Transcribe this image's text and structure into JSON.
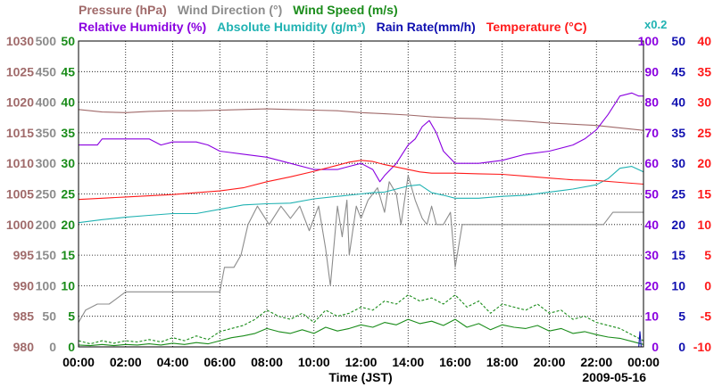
{
  "chart_data": {
    "type": "line",
    "title_lines": [
      [
        {
          "text": "Pressure (hPa)",
          "color": "#a06a6a"
        },
        {
          "text": "Wind Direction (°)",
          "color": "#8c8c8c"
        },
        {
          "text": "Wind Speed (m/s)",
          "color": "#1a8c1a"
        }
      ],
      [
        {
          "text": "Relative Humidity (%)",
          "color": "#8a00e0"
        },
        {
          "text": "Absolute Humidity (g/m³)",
          "color": "#20b2b2"
        },
        {
          "text": "Rain Rate(mm/h)",
          "color": "#1010b0"
        },
        {
          "text": "Temperature (°C)",
          "color": "#ff1a1a"
        }
      ]
    ],
    "corner_label": "x0.2",
    "xlabel": "Time (JST)",
    "date_label": "2009-05-16",
    "x_ticks": [
      "00:00",
      "02:00",
      "04:00",
      "06:00",
      "08:00",
      "10:00",
      "12:00",
      "14:00",
      "16:00",
      "18:00",
      "20:00",
      "22:00",
      "00:00"
    ],
    "xlim": [
      0,
      24
    ],
    "grid": true,
    "axes": [
      {
        "side": "left",
        "color": "#a06a6a",
        "labels": [
          "1030",
          "1025",
          "1020",
          "1015",
          "1010",
          "1005",
          "1000",
          "995",
          "990",
          "985",
          "980"
        ]
      },
      {
        "side": "left",
        "color": "#8c8c8c",
        "labels": [
          "500",
          "450",
          "400",
          "350",
          "300",
          "250",
          "200",
          "150",
          "100",
          "50",
          "0"
        ]
      },
      {
        "side": "left",
        "color": "#1a8c1a",
        "labels": [
          "50",
          "45",
          "40",
          "35",
          "30",
          "25",
          "20",
          "15",
          "10",
          "5",
          "0"
        ]
      },
      {
        "side": "right",
        "color": "#8a00e0",
        "labels": [
          "100",
          "90",
          "80",
          "70",
          "60",
          "50",
          "40",
          "30",
          "20",
          "10",
          "0"
        ]
      },
      {
        "side": "right",
        "color": "#1010b0",
        "labels": [
          "50",
          "45",
          "40",
          "35",
          "30",
          "25",
          "20",
          "15",
          "10",
          "5",
          "0"
        ]
      },
      {
        "side": "right",
        "color": "#ff1a1a",
        "labels": [
          "40",
          "35",
          "30",
          "25",
          "20",
          "15",
          "10",
          "5",
          "0",
          "-5",
          "-10"
        ]
      }
    ],
    "series": [
      {
        "name": "Pressure (hPa)",
        "color": "#a06a6a",
        "ylim": [
          980,
          1030
        ],
        "x": [
          0,
          1,
          2,
          3,
          4,
          5,
          6,
          7,
          8,
          9,
          10,
          11,
          12,
          13,
          14,
          15,
          16,
          17,
          18,
          19,
          20,
          21,
          22,
          23,
          24
        ],
        "y": [
          1018.8,
          1018.4,
          1018.3,
          1018.5,
          1018.6,
          1018.6,
          1018.7,
          1018.8,
          1018.9,
          1018.8,
          1018.7,
          1018.6,
          1018.3,
          1018.1,
          1017.9,
          1017.6,
          1017.4,
          1017.3,
          1017.1,
          1016.9,
          1016.6,
          1016.4,
          1016.2,
          1015.8,
          1015.4
        ]
      },
      {
        "name": "Wind Direction (°)",
        "color": "#8c8c8c",
        "ylim": [
          0,
          500
        ],
        "x": [
          0,
          0.3,
          0.8,
          1.3,
          2,
          3,
          4,
          5,
          5.3,
          6,
          6.2,
          6.6,
          6.9,
          7.2,
          7.6,
          8.1,
          8.6,
          9,
          9.4,
          9.8,
          10.2,
          10.5,
          10.7,
          11,
          11.2,
          11.4,
          11.5,
          11.8,
          12,
          12.3,
          12.7,
          13,
          13.2,
          13.5,
          13.7,
          14,
          14.3,
          14.6,
          14.8,
          15,
          15.2,
          15.5,
          15.8,
          16,
          16.3,
          16.6,
          17,
          17.5,
          18,
          18.5,
          19,
          19.5,
          20,
          20.5,
          21,
          21.5,
          22,
          22.3,
          22.7,
          23,
          23.5,
          24
        ],
        "y": [
          40,
          60,
          70,
          70,
          90,
          90,
          90,
          90,
          90,
          90,
          130,
          130,
          150,
          200,
          230,
          200,
          230,
          210,
          230,
          190,
          230,
          160,
          100,
          230,
          180,
          240,
          150,
          230,
          210,
          240,
          260,
          220,
          270,
          250,
          200,
          280,
          240,
          210,
          200,
          230,
          200,
          200,
          220,
          130,
          200,
          200,
          200,
          200,
          200,
          200,
          200,
          200,
          200,
          200,
          200,
          200,
          200,
          200,
          220,
          220,
          220,
          220
        ]
      },
      {
        "name": "Wind Speed (m/s) max",
        "color": "#1a8c1a",
        "dashed": true,
        "ylim": [
          0,
          50
        ],
        "x": [
          0,
          0.5,
          1,
          1.5,
          2,
          2.5,
          3,
          3.5,
          4,
          4.5,
          5,
          5.5,
          6,
          6.5,
          7,
          7.5,
          8,
          8.5,
          9,
          9.5,
          10,
          10.5,
          11,
          11.5,
          12,
          12.5,
          13,
          13.5,
          14,
          14.5,
          15,
          15.5,
          16,
          16.5,
          17,
          17.5,
          18,
          18.5,
          19,
          19.5,
          20,
          20.5,
          21,
          21.5,
          22,
          22.5,
          23,
          23.5,
          24
        ],
        "y": [
          1,
          0.5,
          1,
          0.6,
          1,
          0.8,
          1.2,
          0.8,
          1.5,
          1,
          1.8,
          1.2,
          2.5,
          3,
          3.5,
          4.5,
          6,
          5,
          4.5,
          5.5,
          4,
          6,
          5,
          5.5,
          6.5,
          6,
          7.5,
          7,
          8.5,
          7.5,
          8,
          7,
          8.5,
          6.5,
          7.5,
          5.5,
          7,
          6.5,
          6,
          7,
          5.5,
          6,
          4.5,
          5,
          4,
          3.5,
          3,
          2,
          1
        ]
      },
      {
        "name": "Wind Speed (m/s)",
        "color": "#1a8c1a",
        "ylim": [
          0,
          50
        ],
        "x": [
          0,
          0.5,
          1,
          1.5,
          2,
          2.5,
          3,
          3.5,
          4,
          4.5,
          5,
          5.5,
          6,
          6.5,
          7,
          7.5,
          8,
          8.5,
          9,
          9.5,
          10,
          10.5,
          11,
          11.5,
          12,
          12.5,
          13,
          13.5,
          14,
          14.5,
          15,
          15.5,
          16,
          16.5,
          17,
          17.5,
          18,
          18.5,
          19,
          19.5,
          20,
          20.5,
          21,
          21.5,
          22,
          22.5,
          23,
          23.5,
          24
        ],
        "y": [
          0.3,
          0.2,
          0.4,
          0.2,
          0.4,
          0.3,
          0.5,
          0.3,
          0.6,
          0.4,
          0.7,
          0.5,
          1,
          1.5,
          1.8,
          2.2,
          3,
          2.5,
          2.2,
          2.8,
          2.2,
          3.2,
          2.6,
          3,
          3.6,
          3.2,
          4,
          3.6,
          4.5,
          3.8,
          4.2,
          3.5,
          4.5,
          3.2,
          3.8,
          2.8,
          3.6,
          3.2,
          3,
          3.5,
          2.6,
          3,
          2.2,
          2.5,
          2,
          1.6,
          1.4,
          0.9,
          0.4
        ]
      },
      {
        "name": "Relative Humidity (%)",
        "color": "#8a00e0",
        "ylim": [
          0,
          100
        ],
        "x": [
          0,
          0.8,
          1,
          2,
          3,
          3.5,
          4,
          5,
          5.5,
          6,
          7,
          8,
          9,
          10,
          11,
          11.5,
          12,
          12.5,
          12.8,
          13,
          13.5,
          14,
          14.3,
          14.6,
          14.9,
          15.2,
          15.5,
          16,
          17,
          18,
          19,
          20,
          21,
          21.5,
          22,
          22.5,
          23,
          23.5,
          23.8,
          24
        ],
        "y": [
          66,
          66,
          68,
          68,
          68,
          66,
          67,
          67,
          66,
          64,
          63,
          62,
          60,
          58,
          58,
          59,
          60,
          58,
          54,
          56,
          60,
          66,
          68,
          72,
          74,
          70,
          64,
          60,
          60,
          61,
          63,
          64,
          66,
          68,
          71,
          76,
          82,
          83,
          82,
          82
        ]
      },
      {
        "name": "Absolute Humidity (g/m³)",
        "color": "#20b2b2",
        "ylim": [
          0,
          50
        ],
        "x": [
          0,
          1,
          2,
          3,
          4,
          5,
          6,
          7,
          8,
          9,
          10,
          11,
          12,
          12.5,
          13,
          13.5,
          14,
          14.5,
          15,
          15.5,
          16,
          17,
          18,
          19,
          20,
          21,
          22,
          22.5,
          23,
          23.5,
          24
        ],
        "y": [
          20.3,
          20.8,
          21.2,
          21.5,
          21.8,
          21.8,
          22.5,
          23.2,
          23.4,
          23.5,
          24.2,
          24.6,
          25.0,
          25.2,
          25.3,
          25.8,
          26.3,
          26.5,
          25.2,
          24.8,
          24.3,
          24.3,
          24.6,
          24.8,
          25.3,
          25.8,
          26.5,
          27.5,
          29.2,
          29.5,
          28.6
        ]
      },
      {
        "name": "Temperature (°C)",
        "color": "#ff1a1a",
        "ylim": [
          -10,
          40
        ],
        "x": [
          0,
          1,
          2,
          3,
          4,
          5,
          6,
          7,
          8,
          9,
          10,
          11,
          11.5,
          12,
          12.5,
          13,
          13.5,
          14,
          14.5,
          15,
          15.5,
          16,
          17,
          18,
          19,
          20,
          21,
          22,
          23,
          24
        ],
        "y": [
          14.1,
          14.3,
          14.5,
          14.7,
          14.9,
          15.2,
          15.5,
          16,
          17.0,
          17.8,
          18.7,
          19.7,
          20.2,
          20.5,
          20.3,
          19.8,
          19.4,
          19,
          18.6,
          18.4,
          18.4,
          18.4,
          18.3,
          18.2,
          17.9,
          17.6,
          17.3,
          17.2,
          16.9,
          16.6
        ]
      },
      {
        "name": "Rain Rate(mm/h)",
        "color": "#1010b0",
        "ylim": [
          0,
          50
        ],
        "x": [
          0,
          23.8,
          23.85,
          23.9,
          24
        ],
        "y": [
          0,
          0,
          2.5,
          0,
          0
        ]
      }
    ]
  }
}
